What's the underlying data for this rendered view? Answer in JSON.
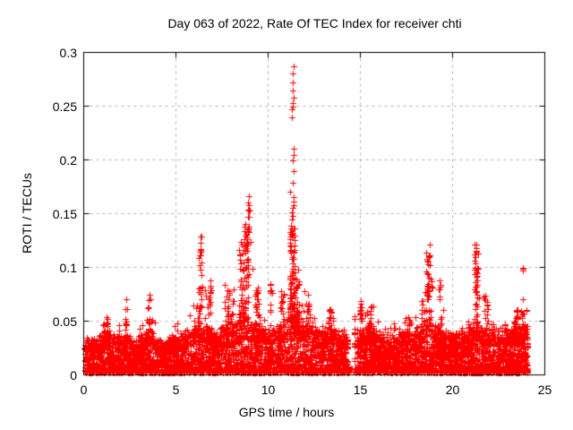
{
  "title": "Day 063 of 2022, Rate Of TEC Index for receiver chti",
  "chart_data": {
    "type": "scatter",
    "title": "Day 063 of 2022, Rate Of TEC Index for receiver chti",
    "xlabel": "GPS time / hours",
    "ylabel": "ROTI / TECUs",
    "xlim": [
      0,
      25
    ],
    "ylim": [
      0,
      0.3
    ],
    "x_ticks": [
      0,
      5,
      10,
      15,
      20,
      25
    ],
    "x_tick_labels": [
      "0",
      "5",
      "10",
      "15",
      "20",
      "25"
    ],
    "y_ticks": [
      0,
      0.05,
      0.1,
      0.15,
      0.2,
      0.25,
      0.3
    ],
    "y_tick_labels": [
      "0",
      "0.05",
      "0.1",
      "0.15",
      "0.2",
      "0.25",
      "0.3"
    ],
    "grid": true,
    "legend": "none",
    "marker": "plus",
    "marker_size_px": 7,
    "colors": {
      "marker": "#ff0000",
      "grid": "#b0b0b0",
      "frame": "#000000",
      "background": "#ffffff",
      "text": "#000000"
    },
    "series_name": "ROTI",
    "receiver": "chti",
    "day_of_year": "063",
    "year": "2022",
    "data_start_hour": 0.02,
    "data_end_hour": 24.08,
    "data_gap_hours": [
      14.32,
      14.82
    ],
    "baseline_floor": 0.002,
    "n_points": 6200,
    "seed": 2022,
    "envelope_step_hours": 0.25,
    "band_top": [
      0.03,
      0.03,
      0.028,
      0.03,
      0.032,
      0.036,
      0.033,
      0.03,
      0.03,
      0.032,
      0.03,
      0.028,
      0.03,
      0.032,
      0.035,
      0.033,
      0.03,
      0.028,
      0.028,
      0.03,
      0.03,
      0.032,
      0.034,
      0.036,
      0.04,
      0.046,
      0.04,
      0.038,
      0.036,
      0.035,
      0.038,
      0.04,
      0.042,
      0.044,
      0.05,
      0.052,
      0.048,
      0.042,
      0.04,
      0.038,
      0.036,
      0.038,
      0.04,
      0.042,
      0.048,
      0.058,
      0.052,
      0.046,
      0.042,
      0.04,
      0.038,
      0.036,
      0.036,
      0.04,
      0.036,
      0.034,
      0.034,
      0.032,
      0.006,
      0.028,
      0.036,
      0.036,
      0.037,
      0.035,
      0.033,
      0.03,
      0.03,
      0.031,
      0.032,
      0.033,
      0.034,
      0.035,
      0.037,
      0.039,
      0.043,
      0.046,
      0.041,
      0.038,
      0.036,
      0.034,
      0.032,
      0.032,
      0.034,
      0.036,
      0.039,
      0.044,
      0.041,
      0.038,
      0.036,
      0.035,
      0.034,
      0.034,
      0.035,
      0.036,
      0.037,
      0.038,
      0.036
    ],
    "sparse_max": [
      0.05,
      0.042,
      0.04,
      0.04,
      0.045,
      0.057,
      0.05,
      0.042,
      0.048,
      0.071,
      0.045,
      0.04,
      0.045,
      0.055,
      0.075,
      0.06,
      0.045,
      0.042,
      0.04,
      0.045,
      0.048,
      0.05,
      0.055,
      0.06,
      0.068,
      0.134,
      0.088,
      0.086,
      0.065,
      0.06,
      0.075,
      0.08,
      0.085,
      0.095,
      0.125,
      0.167,
      0.155,
      0.085,
      0.08,
      0.062,
      0.056,
      0.085,
      0.075,
      0.08,
      0.09,
      0.2,
      0.16,
      0.085,
      0.08,
      0.065,
      0.06,
      0.055,
      0.055,
      0.065,
      0.06,
      0.05,
      0.05,
      0.048,
      0.012,
      0.04,
      0.07,
      0.065,
      0.065,
      0.06,
      0.055,
      0.045,
      0.045,
      0.048,
      0.05,
      0.052,
      0.058,
      0.06,
      0.062,
      0.07,
      0.1,
      0.122,
      0.09,
      0.07,
      0.06,
      0.05,
      0.048,
      0.045,
      0.05,
      0.055,
      0.08,
      0.123,
      0.095,
      0.078,
      0.065,
      0.06,
      0.055,
      0.055,
      0.052,
      0.06,
      0.065,
      0.1,
      0.063
    ],
    "spikes": [
      {
        "t": 1.35,
        "dt": 0.1,
        "ymin": 0.035,
        "ymax": 0.057,
        "n": 12
      },
      {
        "t": 2.3,
        "dt": 0.06,
        "ymin": 0.04,
        "ymax": 0.071,
        "n": 10
      },
      {
        "t": 3.55,
        "dt": 0.1,
        "ymin": 0.04,
        "ymax": 0.075,
        "n": 14
      },
      {
        "t": 6.32,
        "dt": 0.08,
        "ymin": 0.055,
        "ymax": 0.134,
        "n": 28
      },
      {
        "t": 6.85,
        "dt": 0.08,
        "ymin": 0.05,
        "ymax": 0.088,
        "n": 12
      },
      {
        "t": 7.9,
        "dt": 0.25,
        "ymin": 0.045,
        "ymax": 0.085,
        "n": 25
      },
      {
        "t": 8.55,
        "dt": 0.12,
        "ymin": 0.05,
        "ymax": 0.125,
        "n": 30
      },
      {
        "t": 8.8,
        "dt": 0.15,
        "ymin": 0.055,
        "ymax": 0.145,
        "n": 45
      },
      {
        "t": 8.95,
        "dt": 0.08,
        "ymin": 0.145,
        "ymax": 0.167,
        "n": 7
      },
      {
        "t": 9.4,
        "dt": 0.12,
        "ymin": 0.045,
        "ymax": 0.08,
        "n": 14
      },
      {
        "t": 10.15,
        "dt": 0.05,
        "ymin": 0.045,
        "ymax": 0.085,
        "n": 10
      },
      {
        "t": 10.75,
        "dt": 0.12,
        "ymin": 0.045,
        "ymax": 0.078,
        "n": 12
      },
      {
        "t": 11.3,
        "dt": 0.13,
        "ymin": 0.05,
        "ymax": 0.145,
        "n": 80
      },
      {
        "t": 11.6,
        "dt": 0.1,
        "ymin": 0.045,
        "ymax": 0.09,
        "n": 18
      },
      {
        "t": 12.15,
        "dt": 0.1,
        "ymin": 0.045,
        "ymax": 0.082,
        "n": 12
      },
      {
        "t": 13.35,
        "dt": 0.06,
        "ymin": 0.04,
        "ymax": 0.063,
        "n": 10
      },
      {
        "t": 14.68,
        "dt": 0.03,
        "ymin": 0.004,
        "ymax": 0.055,
        "n": 12
      },
      {
        "t": 15.02,
        "dt": 0.06,
        "ymin": 0.04,
        "ymax": 0.07,
        "n": 14
      },
      {
        "t": 15.55,
        "dt": 0.2,
        "ymin": 0.04,
        "ymax": 0.065,
        "n": 16
      },
      {
        "t": 17.55,
        "dt": 0.15,
        "ymin": 0.038,
        "ymax": 0.058,
        "n": 10
      },
      {
        "t": 18.4,
        "dt": 0.12,
        "ymin": 0.04,
        "ymax": 0.07,
        "n": 12
      },
      {
        "t": 18.7,
        "dt": 0.15,
        "ymin": 0.05,
        "ymax": 0.122,
        "n": 38
      },
      {
        "t": 19.3,
        "dt": 0.12,
        "ymin": 0.04,
        "ymax": 0.088,
        "n": 14
      },
      {
        "t": 21.3,
        "dt": 0.12,
        "ymin": 0.05,
        "ymax": 0.123,
        "n": 40
      },
      {
        "t": 21.8,
        "dt": 0.12,
        "ymin": 0.04,
        "ymax": 0.078,
        "n": 12
      },
      {
        "t": 23.45,
        "dt": 0.1,
        "ymin": 0.038,
        "ymax": 0.063,
        "n": 10
      },
      {
        "t": 23.78,
        "dt": 0.04,
        "ymin": 0.092,
        "ymax": 0.1,
        "n": 3
      },
      {
        "t": 23.9,
        "dt": 0.15,
        "ymin": 0.035,
        "ymax": 0.063,
        "n": 12
      }
    ],
    "peak_points": {
      "t": 11.33,
      "dt": 0.05,
      "values": [
        0.2875,
        0.2805,
        0.272,
        0.2645,
        0.258,
        0.253,
        0.25,
        0.247,
        0.2395,
        0.2105,
        0.205,
        0.1995,
        0.1895,
        0.179,
        0.1655,
        0.1615,
        0.158,
        0.155,
        0.1515,
        0.148,
        0.145
      ]
    },
    "peak": {
      "hour": 11.33,
      "value": 0.288
    }
  }
}
